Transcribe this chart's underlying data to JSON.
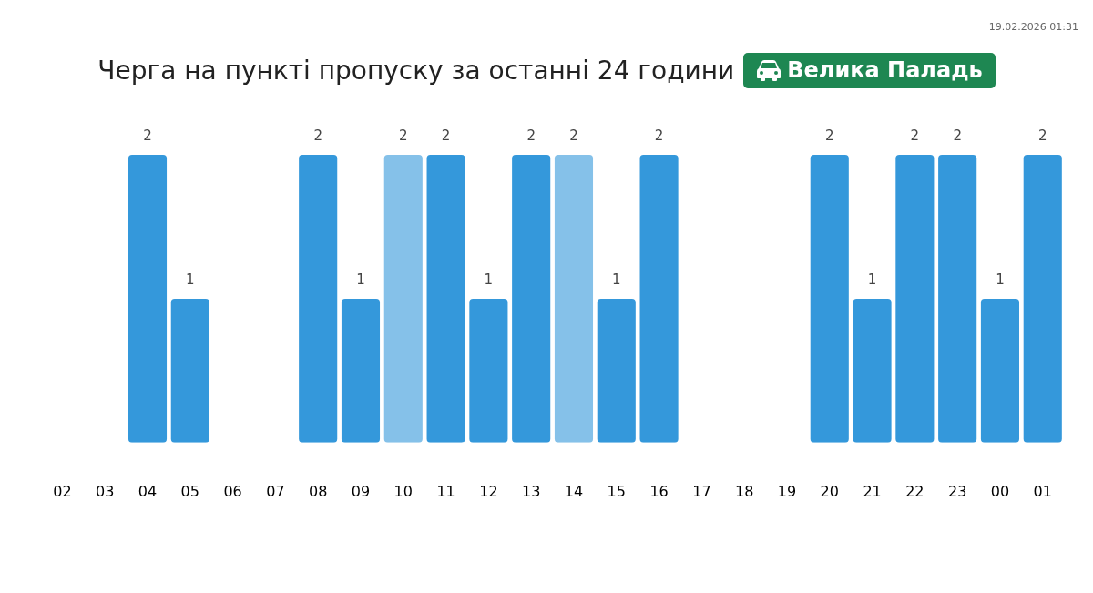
{
  "chart_data": {
    "type": "bar",
    "title": "Черга на пункті пропуску за останні 24 години",
    "subtitle": "Велика Паладь",
    "annotations": [
      "19.02.2026 01:31"
    ],
    "categories": [
      "02",
      "03",
      "04",
      "05",
      "06",
      "07",
      "08",
      "09",
      "10",
      "11",
      "12",
      "13",
      "14",
      "15",
      "16",
      "17",
      "18",
      "19",
      "20",
      "21",
      "22",
      "23",
      "00",
      "01"
    ],
    "values": [
      null,
      null,
      2,
      1,
      null,
      null,
      2,
      1,
      2,
      2,
      1,
      2,
      2,
      1,
      2,
      null,
      null,
      null,
      2,
      1,
      2,
      2,
      1,
      2
    ],
    "value_labels": [
      null,
      null,
      "2",
      "1",
      null,
      null,
      "2",
      "1",
      "2",
      "2",
      "1",
      "2",
      "2",
      "1",
      "2",
      null,
      null,
      null,
      "2",
      "1",
      "2",
      "2",
      "1",
      "2"
    ],
    "colors": [
      "#3498db",
      "#3498db",
      "#3498db",
      "#3498db",
      "#3498db",
      "#3498db",
      "#3498db",
      "#3498db",
      "#85c1e9",
      "#3498db",
      "#3498db",
      "#3498db",
      "#85c1e9",
      "#3498db",
      "#3498db",
      "#3498db",
      "#3498db",
      "#3498db",
      "#3498db",
      "#3498db",
      "#3498db",
      "#3498db",
      "#3498db",
      "#3498db"
    ]
  }
}
